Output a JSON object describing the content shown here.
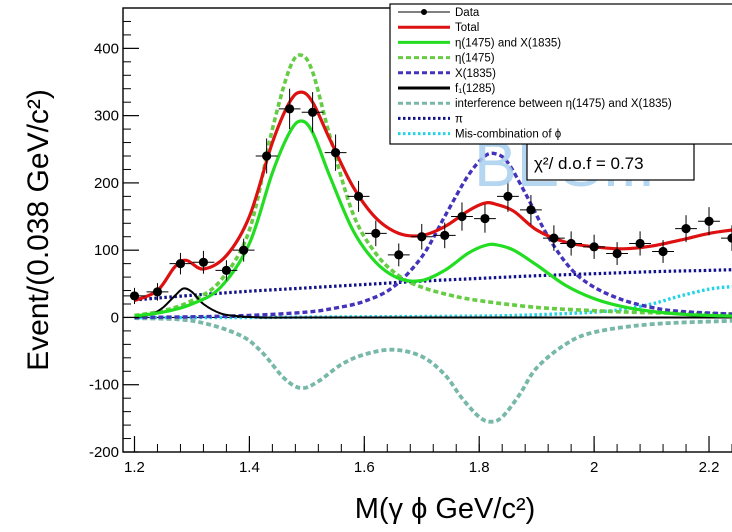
{
  "chart_data": {
    "type": "line",
    "xlabel": "M(γ ϕ  GeV/c²)",
    "ylabel": "Event/(0.038 GeV/c²)",
    "xlim": [
      1.18,
      2.24
    ],
    "ylim": [
      -200,
      460
    ],
    "x_ticks": [
      "1.2",
      "1.4",
      "1.6",
      "1.8",
      "2",
      "2.2"
    ],
    "y_ticks": [
      "-200",
      "-100",
      "0",
      "100",
      "200",
      "300",
      "400"
    ],
    "annotation": "χ²/ d.o.f = 0.73",
    "watermark": "BESIII",
    "legend_position": "top-right",
    "legend": [
      {
        "label": "Data",
        "color": "#000000",
        "style": "marker"
      },
      {
        "label": "Total",
        "color": "#dd1111",
        "style": "solid"
      },
      {
        "label": "η(1475) and X(1835)",
        "color": "#22dd22",
        "style": "solid"
      },
      {
        "label": "η(1475)",
        "color": "#66cc44",
        "style": "dashed"
      },
      {
        "label": "X(1835)",
        "color": "#4433bb",
        "style": "dashed"
      },
      {
        "label": "f₁(1285)",
        "color": "#000000",
        "style": "solid"
      },
      {
        "label": "interference between η(1475) and X(1835)",
        "color": "#77b8a8",
        "style": "dashed"
      },
      {
        "label": "π",
        "color": "#11118a",
        "style": "dotted"
      },
      {
        "label": "Mis-combination of ϕ",
        "color": "#22d4e8",
        "style": "dotted"
      }
    ],
    "data_points": {
      "x": [
        1.2,
        1.24,
        1.28,
        1.32,
        1.36,
        1.39,
        1.43,
        1.47,
        1.51,
        1.55,
        1.59,
        1.62,
        1.66,
        1.7,
        1.74,
        1.77,
        1.81,
        1.85,
        1.89,
        1.93,
        1.96,
        2.0,
        2.04,
        2.08,
        2.12,
        2.16,
        2.2,
        2.24
      ],
      "y": [
        32,
        38,
        80,
        82,
        70,
        100,
        240,
        310,
        305,
        245,
        180,
        125,
        93,
        120,
        122,
        150,
        147,
        180,
        160,
        118,
        110,
        105,
        95,
        110,
        98,
        132,
        143,
        118
      ],
      "yerr": [
        12,
        13,
        16,
        17,
        15,
        17,
        26,
        30,
        30,
        27,
        23,
        19,
        17,
        19,
        19,
        21,
        21,
        23,
        22,
        19,
        18,
        18,
        17,
        18,
        17,
        20,
        21,
        19
      ]
    },
    "series": [
      {
        "name": "Total",
        "x": [
          1.2,
          1.24,
          1.27,
          1.29,
          1.32,
          1.36,
          1.4,
          1.44,
          1.47,
          1.49,
          1.51,
          1.54,
          1.58,
          1.62,
          1.66,
          1.7,
          1.74,
          1.78,
          1.81,
          1.83,
          1.86,
          1.9,
          1.95,
          2.0,
          2.05,
          2.1,
          2.15,
          2.2,
          2.24
        ],
        "values": [
          25,
          40,
          75,
          85,
          72,
          92,
          150,
          260,
          320,
          335,
          320,
          265,
          195,
          148,
          125,
          122,
          135,
          158,
          170,
          168,
          158,
          130,
          112,
          105,
          102,
          106,
          115,
          125,
          130
        ]
      },
      {
        "name": "η(1475) and X(1835)",
        "x": [
          1.2,
          1.25,
          1.3,
          1.35,
          1.4,
          1.44,
          1.47,
          1.49,
          1.51,
          1.54,
          1.58,
          1.62,
          1.66,
          1.7,
          1.74,
          1.78,
          1.81,
          1.83,
          1.86,
          1.9,
          1.95,
          2.0,
          2.05,
          2.1,
          2.15,
          2.2,
          2.24
        ],
        "values": [
          2,
          8,
          20,
          45,
          110,
          215,
          275,
          292,
          275,
          210,
          130,
          82,
          58,
          55,
          70,
          95,
          107,
          108,
          100,
          78,
          48,
          28,
          16,
          9,
          5,
          3,
          2
        ]
      },
      {
        "name": "η(1475)",
        "x": [
          1.2,
          1.25,
          1.3,
          1.35,
          1.4,
          1.44,
          1.47,
          1.49,
          1.51,
          1.54,
          1.58,
          1.62,
          1.66,
          1.7,
          1.75,
          1.8,
          1.9,
          2.0,
          2.1,
          2.24
        ],
        "values": [
          3,
          10,
          25,
          55,
          130,
          280,
          370,
          390,
          365,
          270,
          155,
          95,
          62,
          45,
          33,
          25,
          15,
          10,
          7,
          5
        ]
      },
      {
        "name": "X(1835)",
        "x": [
          1.2,
          1.3,
          1.4,
          1.5,
          1.55,
          1.6,
          1.65,
          1.7,
          1.74,
          1.78,
          1.81,
          1.83,
          1.85,
          1.88,
          1.92,
          1.96,
          2.0,
          2.05,
          2.1,
          2.15,
          2.24
        ],
        "values": [
          0,
          1,
          3,
          8,
          14,
          24,
          45,
          90,
          150,
          210,
          240,
          243,
          230,
          185,
          120,
          72,
          45,
          26,
          15,
          9,
          5
        ]
      },
      {
        "name": "f₁(1285)",
        "x": [
          1.2,
          1.23,
          1.25,
          1.27,
          1.285,
          1.3,
          1.32,
          1.35,
          1.38,
          1.42,
          1.5,
          2.24
        ],
        "values": [
          0,
          5,
          15,
          32,
          43,
          38,
          20,
          6,
          2,
          0,
          0,
          0
        ]
      },
      {
        "name": "interference between η(1475) and X(1835)",
        "x": [
          1.2,
          1.3,
          1.38,
          1.42,
          1.46,
          1.49,
          1.52,
          1.56,
          1.6,
          1.65,
          1.7,
          1.74,
          1.77,
          1.8,
          1.82,
          1.84,
          1.87,
          1.9,
          1.95,
          2.0,
          2.1,
          2.24
        ],
        "values": [
          -1,
          -5,
          -25,
          -50,
          -90,
          -105,
          -95,
          -70,
          -55,
          -48,
          -58,
          -85,
          -120,
          -148,
          -155,
          -148,
          -115,
          -75,
          -40,
          -22,
          -10,
          -5
        ]
      },
      {
        "name": "π",
        "x": [
          1.2,
          1.3,
          1.4,
          1.5,
          1.6,
          1.7,
          1.8,
          1.9,
          2.0,
          2.1,
          2.2,
          2.24
        ],
        "values": [
          26,
          33,
          39,
          44,
          49,
          54,
          58,
          62,
          65,
          68,
          70,
          71
        ]
      },
      {
        "name": "Mis-combination of ϕ",
        "x": [
          1.2,
          1.4,
          1.6,
          1.8,
          1.9,
          2.0,
          2.05,
          2.1,
          2.15,
          2.2,
          2.24
        ],
        "values": [
          0,
          0,
          1,
          2,
          4,
          8,
          12,
          20,
          32,
          42,
          46
        ]
      }
    ]
  }
}
